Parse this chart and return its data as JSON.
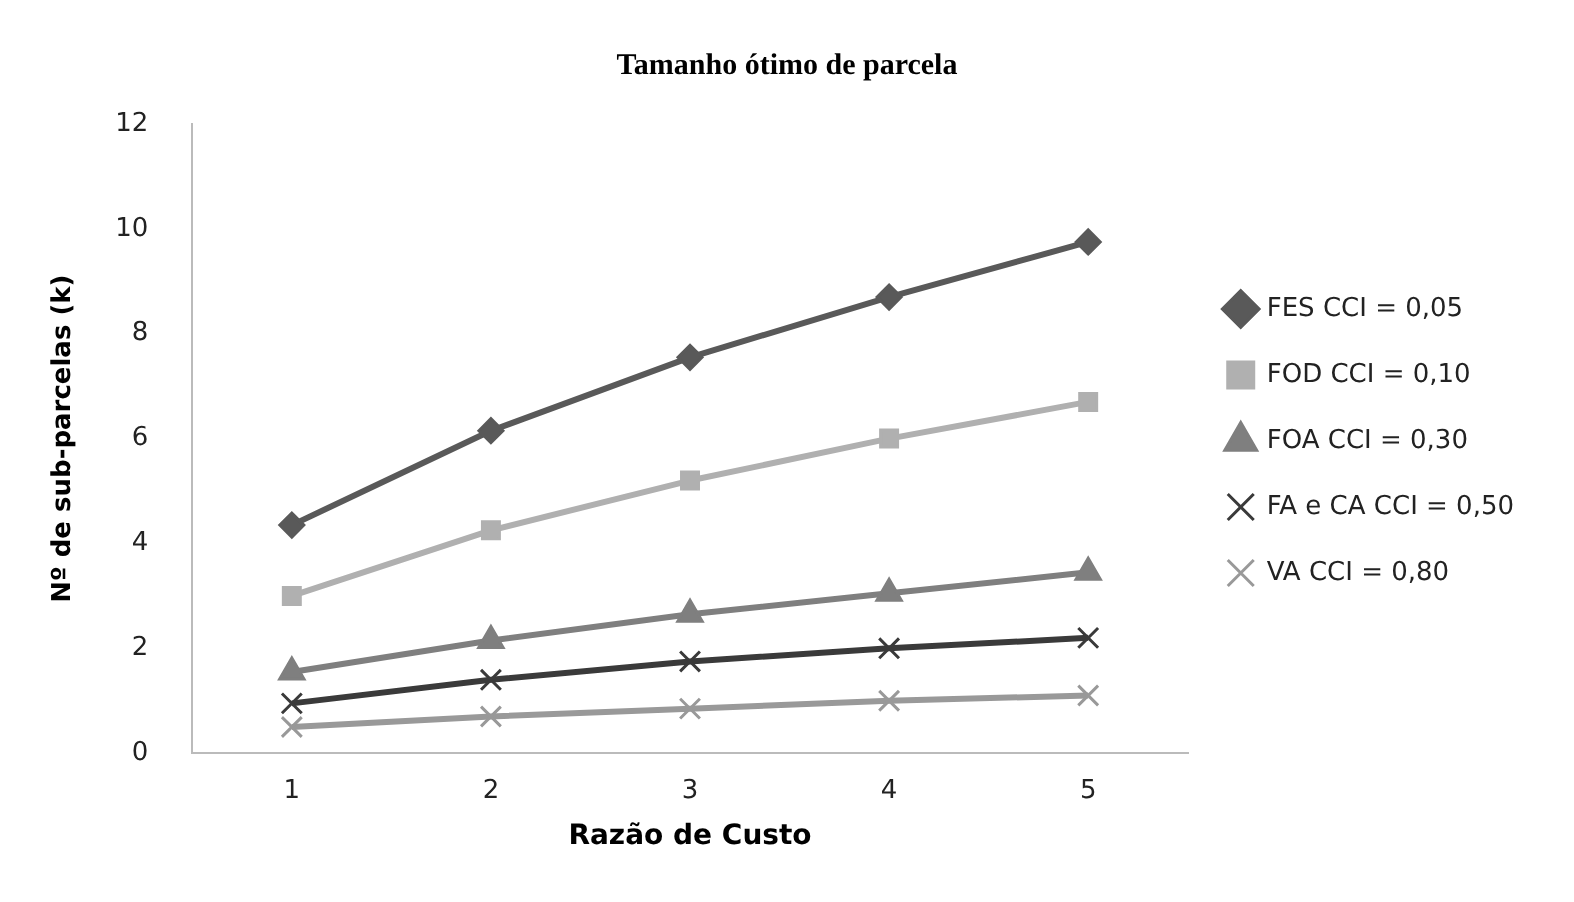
{
  "chart_data": {
    "type": "line",
    "title": "Tamanho ótimo de parcela",
    "xlabel": "Razão de Custo",
    "ylabel": "Nº de sub-parcelas (k)",
    "categories": [
      "1",
      "2",
      "3",
      "4",
      "5"
    ],
    "ylim": [
      0,
      12
    ],
    "yticks": [
      0,
      2,
      4,
      6,
      8,
      10,
      12
    ],
    "grid": false,
    "legend": "right",
    "series": [
      {
        "name": "FES CCI = 0,05",
        "color": "#595959",
        "marker": "diamond",
        "values": [
          4.35,
          6.15,
          7.55,
          8.7,
          9.75
        ]
      },
      {
        "name": "FOD CCI = 0,10",
        "color": "#b0b0b0",
        "marker": "square",
        "values": [
          3.0,
          4.25,
          5.2,
          6.0,
          6.7
        ]
      },
      {
        "name": "FOA CCI = 0,30",
        "color": "#7f7f7f",
        "marker": "triangle",
        "values": [
          1.55,
          2.15,
          2.65,
          3.05,
          3.45
        ]
      },
      {
        "name": "FA e CA CCI = 0,50",
        "color": "#3a3a3a",
        "marker": "cross",
        "values": [
          0.95,
          1.4,
          1.75,
          2.0,
          2.2
        ]
      },
      {
        "name": "VA CCI = 0,80",
        "color": "#999999",
        "marker": "cross",
        "values": [
          0.5,
          0.7,
          0.85,
          1.0,
          1.1
        ]
      }
    ]
  }
}
